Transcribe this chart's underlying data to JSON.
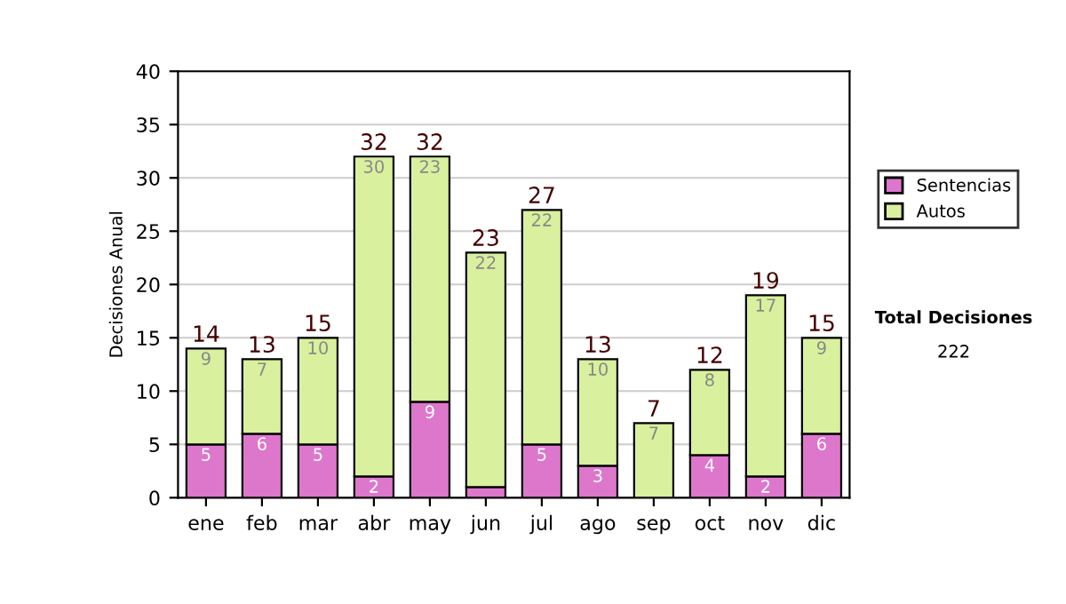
{
  "chart_data": {
    "type": "bar",
    "stacked": true,
    "ylabel": "Decisiones Anual",
    "categories": [
      "ene",
      "feb",
      "mar",
      "abr",
      "may",
      "jun",
      "jul",
      "ago",
      "sep",
      "oct",
      "nov",
      "dic"
    ],
    "series": [
      {
        "name": "Sentencias",
        "color": "#dd77cc",
        "values": [
          5,
          6,
          5,
          2,
          9,
          1,
          5,
          3,
          0,
          4,
          2,
          6
        ],
        "value_labels": [
          "5",
          "6",
          "5",
          "2",
          "9",
          null,
          "5",
          "3",
          null,
          "4",
          "2",
          "6"
        ]
      },
      {
        "name": "Autos",
        "color": "#d9f09e",
        "values": [
          9,
          7,
          10,
          30,
          23,
          22,
          22,
          10,
          7,
          8,
          17,
          9
        ],
        "value_labels": [
          "9",
          "7",
          "10",
          "30",
          "23",
          "22",
          "22",
          "10",
          "7",
          "8",
          "17",
          "9"
        ]
      }
    ],
    "totals": [
      "14",
      "13",
      "15",
      "32",
      "32",
      "23",
      "27",
      "13",
      "7",
      "12",
      "19",
      "15"
    ],
    "ylim": [
      0,
      40
    ],
    "yticks": [
      0,
      5,
      10,
      15,
      20,
      25,
      30,
      35,
      40
    ],
    "grid": "y",
    "legend": "right",
    "annotations": [
      "Total Decisiones",
      "222"
    ]
  }
}
